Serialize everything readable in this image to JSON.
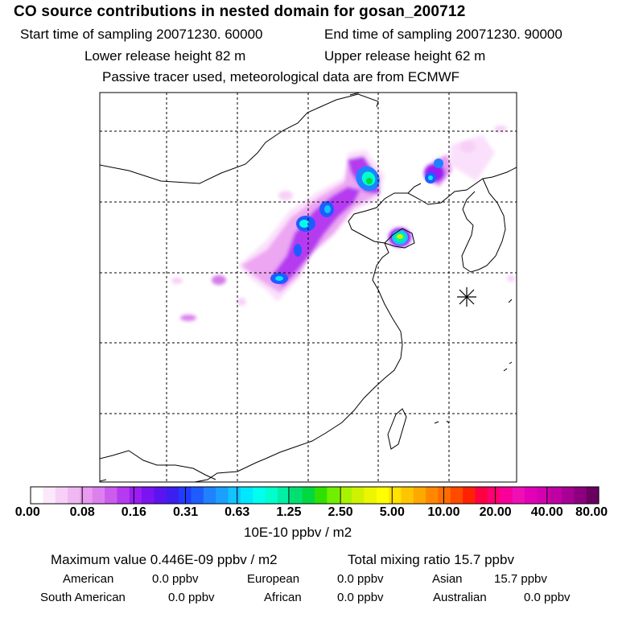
{
  "header": {
    "title": "CO  source contributions in nested domain for gosan_200712",
    "start_time": "Start time of sampling 20071230. 60000",
    "end_time": "End time of sampling 20071230. 90000",
    "lower_height": "Lower release height   82 m",
    "upper_height": "Upper release height   62 m",
    "tracer_note": "Passive tracer used, meteorological data are from ECMWF"
  },
  "legend": {
    "ticks": [
      "0.00",
      "0.08",
      "0.16",
      "0.31",
      "0.63",
      "1.25",
      "2.50",
      "5.00",
      "10.00",
      "20.00",
      "40.00",
      "80.00"
    ],
    "units": "10E-10 ppbv / m2",
    "colors": [
      "#ffffff",
      "#fbe8fb",
      "#f7d0f7",
      "#f0b8f3",
      "#e89cf0",
      "#dc80ee",
      "#cc5cee",
      "#b63af0",
      "#9a1ef2",
      "#7a14f0",
      "#5a14f0",
      "#3c1ef0",
      "#1f3cff",
      "#1f5cff",
      "#1f82ff",
      "#1aa0ff",
      "#12c4ff",
      "#00e8ff",
      "#00ffee",
      "#00ffcc",
      "#00f0a4",
      "#00e070",
      "#00d840",
      "#30e000",
      "#70f000",
      "#a8f400",
      "#cef200",
      "#ecf600",
      "#ffff00",
      "#ffe200",
      "#ffc600",
      "#ffa800",
      "#ff8800",
      "#ff6c00",
      "#ff4a00",
      "#ff2200",
      "#ff0044",
      "#ff0070",
      "#f8009a",
      "#ee10b4",
      "#e400b8",
      "#d400b0",
      "#c000a4",
      "#a80094",
      "#8c0080",
      "#6a0060"
    ]
  },
  "stats": {
    "max_value": "Maximum value  0.446E-09 ppbv / m2",
    "total_mixing": "Total mixing ratio        15.7 ppbv"
  },
  "regions": [
    {
      "name": "American",
      "value": "0.0 ppbv"
    },
    {
      "name": "European",
      "value": "0.0 ppbv"
    },
    {
      "name": "Asian",
      "value": "15.7 ppbv"
    },
    {
      "name": "South American",
      "value": "0.0 ppbv"
    },
    {
      "name": "African",
      "value": "0.0 ppbv"
    },
    {
      "name": "Australian",
      "value": "0.0 ppbv"
    }
  ]
}
